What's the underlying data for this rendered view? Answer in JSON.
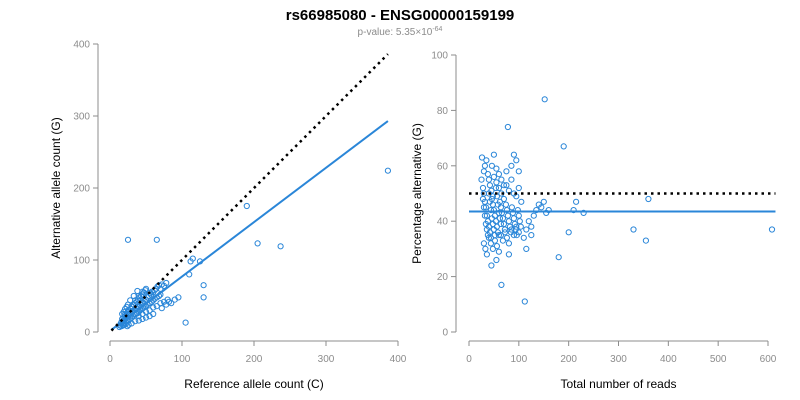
{
  "colors": {
    "points": "#2a86d8",
    "fit": "#2a86d8",
    "reference": "#000000"
  },
  "header": {
    "title": "rs66985080 - ENSG00000159199",
    "pvalue_prefix": "p-value: 5.35×10",
    "pvalue_exponent": "-64"
  },
  "chart_data": [
    {
      "type": "scatter",
      "xlabel": "Reference allele count (C)",
      "ylabel": "Alternative allele count (G)",
      "xlim": [
        0,
        400
      ],
      "ylim": [
        0,
        400
      ],
      "xticks": [
        0,
        100,
        200,
        300,
        400
      ],
      "yticks": [
        0,
        100,
        200,
        300,
        400
      ],
      "points": [
        [
          15,
          12
        ],
        [
          16,
          14
        ],
        [
          17,
          18
        ],
        [
          18,
          15
        ],
        [
          19,
          20
        ],
        [
          20,
          17
        ],
        [
          21,
          22
        ],
        [
          22,
          19
        ],
        [
          23,
          25
        ],
        [
          24,
          21
        ],
        [
          25,
          28
        ],
        [
          26,
          23
        ],
        [
          27,
          30
        ],
        [
          28,
          26
        ],
        [
          29,
          32
        ],
        [
          30,
          28
        ],
        [
          31,
          35
        ],
        [
          32,
          29
        ],
        [
          33,
          38
        ],
        [
          34,
          31
        ],
        [
          35,
          40
        ],
        [
          36,
          33
        ],
        [
          37,
          42
        ],
        [
          38,
          35
        ],
        [
          39,
          45
        ],
        [
          40,
          36
        ],
        [
          41,
          48
        ],
        [
          42,
          38
        ],
        [
          43,
          50
        ],
        [
          44,
          40
        ],
        [
          45,
          52
        ],
        [
          46,
          41
        ],
        [
          47,
          55
        ],
        [
          48,
          43
        ],
        [
          49,
          58
        ],
        [
          50,
          45
        ],
        [
          52,
          48
        ],
        [
          54,
          50
        ],
        [
          55,
          54
        ],
        [
          57,
          52
        ],
        [
          58,
          56
        ],
        [
          60,
          55
        ],
        [
          62,
          58
        ],
        [
          64,
          60
        ],
        [
          66,
          63
        ],
        [
          68,
          65
        ],
        [
          70,
          60
        ],
        [
          72,
          66
        ],
        [
          75,
          64
        ],
        [
          78,
          68
        ],
        [
          18,
          10
        ],
        [
          20,
          12
        ],
        [
          22,
          14
        ],
        [
          24,
          15
        ],
        [
          26,
          16
        ],
        [
          28,
          18
        ],
        [
          30,
          20
        ],
        [
          32,
          22
        ],
        [
          34,
          24
        ],
        [
          36,
          25
        ],
        [
          38,
          26
        ],
        [
          40,
          28
        ],
        [
          42,
          30
        ],
        [
          44,
          32
        ],
        [
          46,
          33
        ],
        [
          48,
          35
        ],
        [
          50,
          36
        ],
        [
          52,
          38
        ],
        [
          55,
          40
        ],
        [
          58,
          42
        ],
        [
          60,
          44
        ],
        [
          62,
          46
        ],
        [
          65,
          48
        ],
        [
          68,
          50
        ],
        [
          70,
          52
        ],
        [
          40,
          22
        ],
        [
          45,
          25
        ],
        [
          50,
          28
        ],
        [
          55,
          30
        ],
        [
          60,
          34
        ],
        [
          65,
          36
        ],
        [
          70,
          40
        ],
        [
          75,
          42
        ],
        [
          80,
          45
        ],
        [
          85,
          40
        ],
        [
          90,
          45
        ],
        [
          95,
          48
        ],
        [
          72,
          33
        ],
        [
          78,
          38
        ],
        [
          82,
          42
        ],
        [
          20,
          24
        ],
        [
          25,
          30
        ],
        [
          30,
          36
        ],
        [
          35,
          44
        ],
        [
          40,
          50
        ],
        [
          45,
          56
        ],
        [
          50,
          60
        ],
        [
          28,
          44
        ],
        [
          33,
          50
        ],
        [
          38,
          57
        ],
        [
          16,
          8
        ],
        [
          18,
          9
        ],
        [
          20,
          10
        ],
        [
          22,
          11
        ],
        [
          14,
          9
        ],
        [
          13,
          7
        ],
        [
          24,
          8
        ],
        [
          26,
          10
        ],
        [
          30,
          12
        ],
        [
          35,
          15
        ],
        [
          40,
          16
        ],
        [
          45,
          18
        ],
        [
          50,
          20
        ],
        [
          55,
          22
        ],
        [
          60,
          25
        ],
        [
          17,
          25
        ],
        [
          19,
          28
        ],
        [
          21,
          32
        ],
        [
          23,
          35
        ],
        [
          25,
          38
        ],
        [
          25,
          128
        ],
        [
          65,
          128
        ],
        [
          110,
          80
        ],
        [
          112,
          98
        ],
        [
          115,
          102
        ],
        [
          125,
          98
        ],
        [
          130,
          48
        ],
        [
          130,
          65
        ],
        [
          105,
          13
        ],
        [
          190,
          175
        ],
        [
          205,
          123
        ],
        [
          237,
          119
        ],
        [
          386,
          224
        ]
      ],
      "fit_line": {
        "x": [
          2,
          386
        ],
        "y": [
          3,
          293
        ]
      },
      "reference_line": {
        "x": [
          2,
          386
        ],
        "y": [
          2,
          386
        ]
      }
    },
    {
      "type": "scatter",
      "xlabel": "Total number of reads",
      "ylabel": "Percentage alternative (G)",
      "xlim": [
        0,
        600
      ],
      "ylim": [
        0,
        100
      ],
      "xticks": [
        0,
        100,
        200,
        300,
        400,
        500,
        600
      ],
      "yticks": [
        0,
        20,
        40,
        60,
        80,
        100
      ],
      "points": [
        [
          25,
          55
        ],
        [
          28,
          52
        ],
        [
          30,
          50
        ],
        [
          32,
          47
        ],
        [
          34,
          45
        ],
        [
          36,
          42
        ],
        [
          38,
          40
        ],
        [
          40,
          38
        ],
        [
          42,
          36
        ],
        [
          44,
          34
        ],
        [
          46,
          48
        ],
        [
          48,
          46
        ],
        [
          50,
          44
        ],
        [
          52,
          42
        ],
        [
          54,
          40
        ],
        [
          56,
          38
        ],
        [
          58,
          36
        ],
        [
          60,
          35
        ],
        [
          62,
          47
        ],
        [
          64,
          45
        ],
        [
          66,
          43
        ],
        [
          68,
          41
        ],
        [
          70,
          39
        ],
        [
          72,
          37
        ],
        [
          74,
          46
        ],
        [
          76,
          44
        ],
        [
          78,
          42
        ],
        [
          80,
          40
        ],
        [
          82,
          38
        ],
        [
          84,
          36
        ],
        [
          86,
          45
        ],
        [
          88,
          43
        ],
        [
          90,
          41
        ],
        [
          92,
          39
        ],
        [
          94,
          37
        ],
        [
          96,
          35
        ],
        [
          98,
          44
        ],
        [
          100,
          42
        ],
        [
          102,
          40
        ],
        [
          104,
          38
        ],
        [
          30,
          58
        ],
        [
          32,
          60
        ],
        [
          35,
          62
        ],
        [
          38,
          57
        ],
        [
          40,
          55
        ],
        [
          42,
          53
        ],
        [
          45,
          51
        ],
        [
          48,
          49
        ],
        [
          50,
          56
        ],
        [
          55,
          54
        ],
        [
          60,
          52
        ],
        [
          65,
          50
        ],
        [
          70,
          48
        ],
        [
          75,
          53
        ],
        [
          80,
          51
        ],
        [
          85,
          55
        ],
        [
          90,
          50
        ],
        [
          95,
          49
        ],
        [
          100,
          52
        ],
        [
          105,
          47
        ],
        [
          30,
          32
        ],
        [
          33,
          30
        ],
        [
          36,
          28
        ],
        [
          40,
          34
        ],
        [
          44,
          32
        ],
        [
          48,
          30
        ],
        [
          52,
          33
        ],
        [
          56,
          31
        ],
        [
          60,
          29
        ],
        [
          64,
          35
        ],
        [
          68,
          33
        ],
        [
          72,
          36
        ],
        [
          76,
          34
        ],
        [
          80,
          32
        ],
        [
          85,
          37
        ],
        [
          90,
          35
        ],
        [
          95,
          38
        ],
        [
          100,
          36
        ],
        [
          110,
          34
        ],
        [
          115,
          37
        ],
        [
          120,
          40
        ],
        [
          125,
          38
        ],
        [
          130,
          42
        ],
        [
          135,
          44
        ],
        [
          140,
          46
        ],
        [
          145,
          45
        ],
        [
          150,
          47
        ],
        [
          155,
          43
        ],
        [
          160,
          44
        ],
        [
          26,
          63
        ],
        [
          28,
          48
        ],
        [
          30,
          45
        ],
        [
          32,
          42
        ],
        [
          34,
          39
        ],
        [
          36,
          37
        ],
        [
          38,
          35
        ],
        [
          40,
          50
        ],
        [
          42,
          47
        ],
        [
          44,
          44
        ],
        [
          46,
          41
        ],
        [
          48,
          39
        ],
        [
          50,
          37
        ],
        [
          52,
          35
        ],
        [
          54,
          52
        ],
        [
          56,
          49
        ],
        [
          58,
          46
        ],
        [
          60,
          43
        ],
        [
          62,
          41
        ],
        [
          64,
          39
        ],
        [
          46,
          60
        ],
        [
          50,
          64
        ],
        [
          55,
          59
        ],
        [
          60,
          57
        ],
        [
          65,
          55
        ],
        [
          70,
          53
        ],
        [
          75,
          58
        ],
        [
          85,
          60
        ],
        [
          90,
          64
        ],
        [
          95,
          62
        ],
        [
          45,
          24
        ],
        [
          55,
          26
        ],
        [
          65,
          17
        ],
        [
          80,
          28
        ],
        [
          78,
          74
        ],
        [
          152,
          84
        ],
        [
          112,
          11
        ],
        [
          180,
          27
        ],
        [
          190,
          67
        ],
        [
          200,
          36
        ],
        [
          210,
          44
        ],
        [
          215,
          47
        ],
        [
          230,
          43
        ],
        [
          330,
          37
        ],
        [
          355,
          33
        ],
        [
          360,
          48
        ],
        [
          608,
          37
        ],
        [
          115,
          30
        ],
        [
          125,
          35
        ],
        [
          100,
          58
        ]
      ],
      "fit_line": {
        "x": [
          0,
          615
        ],
        "y": [
          43.5,
          43.5
        ]
      },
      "reference_line": {
        "x": [
          0,
          615
        ],
        "y": [
          50,
          50
        ]
      }
    }
  ]
}
